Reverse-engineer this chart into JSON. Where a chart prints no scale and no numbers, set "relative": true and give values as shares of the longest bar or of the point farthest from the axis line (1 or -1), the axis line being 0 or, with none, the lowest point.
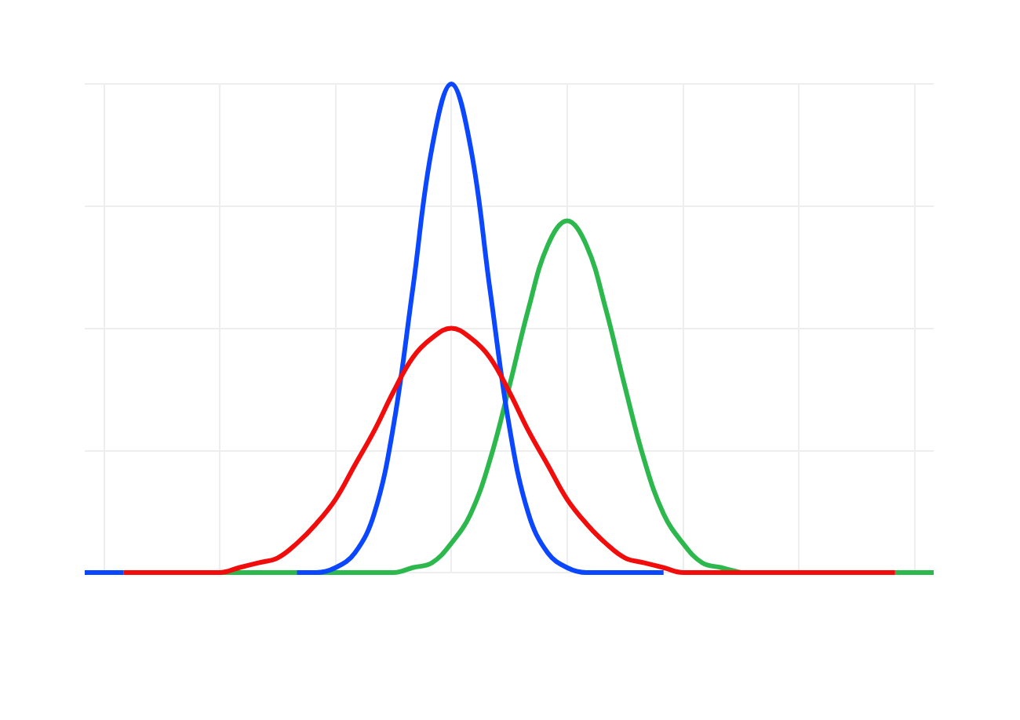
{
  "chart_data": {
    "type": "line",
    "relative": true,
    "grid": true,
    "marker": "none",
    "line_style": "solid",
    "categories": [
      null,
      null,
      null,
      null,
      null,
      null,
      null,
      null,
      null,
      null,
      null,
      null,
      null,
      null,
      null,
      null,
      null,
      null,
      null,
      null,
      null,
      null,
      null,
      null,
      null,
      null,
      null,
      null,
      null,
      null,
      null,
      null,
      null,
      null,
      null,
      null,
      null,
      null,
      null,
      null,
      null,
      null,
      null,
      null,
      null
    ],
    "series": [
      {
        "color": "#2db84d",
        "values": [
          null,
          null,
          null,
          null,
          null,
          null,
          null,
          0,
          0,
          0,
          0,
          0,
          0,
          0,
          0,
          0,
          0,
          0.01,
          0.02,
          0.06,
          0.12,
          0.23,
          0.38,
          0.54,
          0.67,
          0.72,
          0.67,
          0.54,
          0.38,
          0.23,
          0.12,
          0.06,
          0.02,
          0.01,
          0,
          null,
          null,
          null,
          null,
          null,
          null,
          null,
          0,
          0,
          0
        ]
      },
      {
        "color": "#0a47ff",
        "values": [
          0,
          0,
          0,
          null,
          null,
          null,
          null,
          null,
          null,
          null,
          null,
          0,
          0,
          0.01,
          0.04,
          0.12,
          0.3,
          0.58,
          0.87,
          1,
          0.87,
          0.58,
          0.3,
          0.12,
          0.04,
          0.01,
          0,
          0,
          0,
          0,
          0,
          null,
          null,
          null,
          null,
          null,
          null,
          null,
          null,
          null,
          null,
          null,
          null,
          null,
          null
        ]
      },
      {
        "color": "#f20d0d",
        "values": [
          null,
          null,
          0,
          0,
          0,
          0,
          0,
          0,
          0.01,
          0.02,
          0.03,
          0.06,
          0.1,
          0.15,
          0.22,
          0.29,
          0.37,
          0.44,
          0.48,
          0.5,
          0.48,
          0.44,
          0.37,
          0.29,
          0.22,
          0.15,
          0.1,
          0.06,
          0.03,
          0.02,
          0.01,
          0,
          0,
          0,
          0,
          0,
          0,
          0,
          0,
          0,
          0,
          0,
          0,
          null,
          null
        ]
      }
    ]
  }
}
